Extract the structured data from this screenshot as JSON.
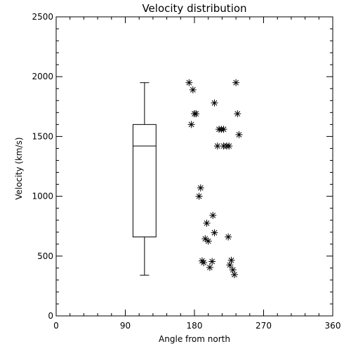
{
  "chart_data": {
    "type": "scatter",
    "title": "Velocity distribution",
    "xlabel": "Angle from north",
    "ylabel": "Velocity (km/s)",
    "xlim": [
      0,
      360
    ],
    "ylim": [
      0,
      2500
    ],
    "xticks": [
      0,
      90,
      180,
      270,
      360
    ],
    "yticks": [
      0,
      500,
      1000,
      1500,
      2000,
      2500
    ],
    "x_minor_step": 18,
    "y_minor_step": 100,
    "grid": false,
    "marker": "asterisk",
    "color": "#000000",
    "boxplot": {
      "x_center": 115,
      "half_width": 15,
      "whisker_low": 340,
      "q1": 660,
      "median": 1420,
      "q3": 1600,
      "whisker_high": 1950
    },
    "points": [
      {
        "x": 173,
        "y": 1950
      },
      {
        "x": 178,
        "y": 1890
      },
      {
        "x": 180,
        "y": 1690
      },
      {
        "x": 182,
        "y": 1690
      },
      {
        "x": 176,
        "y": 1600
      },
      {
        "x": 206,
        "y": 1780
      },
      {
        "x": 234,
        "y": 1950
      },
      {
        "x": 236,
        "y": 1690
      },
      {
        "x": 212,
        "y": 1560
      },
      {
        "x": 215,
        "y": 1560
      },
      {
        "x": 218,
        "y": 1560
      },
      {
        "x": 238,
        "y": 1515
      },
      {
        "x": 210,
        "y": 1420
      },
      {
        "x": 218,
        "y": 1420
      },
      {
        "x": 222,
        "y": 1420
      },
      {
        "x": 225,
        "y": 1420
      },
      {
        "x": 188,
        "y": 1070
      },
      {
        "x": 186,
        "y": 1000
      },
      {
        "x": 204,
        "y": 840
      },
      {
        "x": 196,
        "y": 775
      },
      {
        "x": 206,
        "y": 695
      },
      {
        "x": 194,
        "y": 645
      },
      {
        "x": 198,
        "y": 625
      },
      {
        "x": 224,
        "y": 660
      },
      {
        "x": 190,
        "y": 460
      },
      {
        "x": 192,
        "y": 445
      },
      {
        "x": 203,
        "y": 455
      },
      {
        "x": 200,
        "y": 405
      },
      {
        "x": 228,
        "y": 465
      },
      {
        "x": 226,
        "y": 425
      },
      {
        "x": 230,
        "y": 385
      },
      {
        "x": 232,
        "y": 345
      }
    ]
  }
}
